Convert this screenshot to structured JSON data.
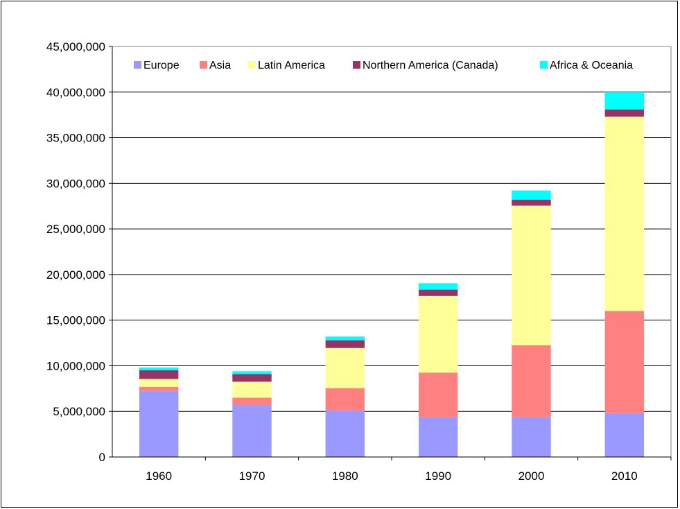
{
  "chart_data": {
    "type": "bar",
    "stacked": true,
    "categories": [
      "1960",
      "1970",
      "1980",
      "1990",
      "2000",
      "2010"
    ],
    "series": [
      {
        "name": "Europe",
        "color": "#9999ff",
        "values": [
          7250000,
          5700000,
          5100000,
          4350000,
          4350000,
          4800000
        ]
      },
      {
        "name": "Asia",
        "color": "#ff8080",
        "values": [
          450000,
          800000,
          2450000,
          4900000,
          7900000,
          11200000
        ]
      },
      {
        "name": "Latin America",
        "color": "#ffff99",
        "values": [
          850000,
          1750000,
          4400000,
          8400000,
          15300000,
          21300000
        ]
      },
      {
        "name": "Northern America (Canada)",
        "color": "#993366",
        "values": [
          950000,
          850000,
          850000,
          700000,
          650000,
          800000
        ]
      },
      {
        "name": "Africa & Oceania",
        "color": "#00ffff",
        "values": [
          300000,
          300000,
          400000,
          700000,
          1000000,
          1900000
        ]
      }
    ],
    "ylim": [
      0,
      45000000
    ],
    "yticks": [
      0,
      5000000,
      10000000,
      15000000,
      20000000,
      25000000,
      30000000,
      35000000,
      40000000,
      45000000
    ],
    "ytick_labels": [
      "0",
      "5,000,000",
      "10,000,000",
      "15,000,000",
      "20,000,000",
      "25,000,000",
      "30,000,000",
      "35,000,000",
      "40,000,000",
      "45,000,000"
    ],
    "grid": true,
    "legend_position": "top"
  }
}
